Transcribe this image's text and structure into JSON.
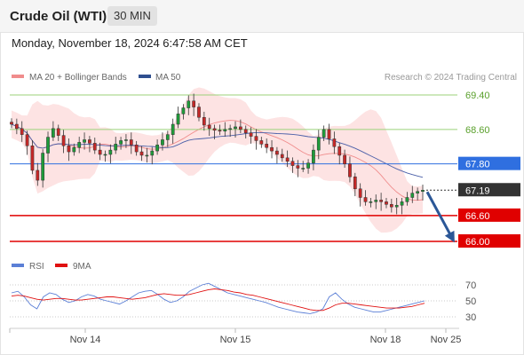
{
  "header": {
    "instrument": "Crude Oil (WTI)",
    "timeframe": "30 MIN"
  },
  "timestamp": "Monday, November 18, 2024 6:47:58 AM CET",
  "chart_data": {
    "type": "candlestick",
    "title": "Crude Oil (WTI)",
    "timeframe": "30 MIN",
    "attribution": "Research © 2024 Trading Central",
    "legend": [
      {
        "label": "MA 20 + Bollinger Bands",
        "color": "#f08c8c"
      },
      {
        "label": "MA 50",
        "color": "#2f4f8f"
      }
    ],
    "price_axis": {
      "visible_range": [
        65.9,
        69.65
      ],
      "labels": [
        "69.40",
        "68.60",
        "67.80",
        "67.19",
        "66.60",
        "66.00"
      ]
    },
    "levels": [
      {
        "label": "69.40",
        "value": 69.4,
        "type": "resistance",
        "color": "#9bd27a"
      },
      {
        "label": "68.60",
        "value": 68.6,
        "type": "resistance",
        "color": "#9bd27a"
      },
      {
        "label": "67.80",
        "value": 67.8,
        "type": "pivot",
        "color": "#2f6fe0"
      },
      {
        "label": "67.19",
        "value": 67.19,
        "type": "last_price",
        "color": "#333333"
      },
      {
        "label": "66.60",
        "value": 66.6,
        "type": "support",
        "color": "#e00000"
      },
      {
        "label": "66.00",
        "value": 66.0,
        "type": "support",
        "color": "#e00000"
      }
    ],
    "forecast_arrow": {
      "from": 67.19,
      "to": 66.0,
      "color": "#2b5797"
    },
    "x_axis": {
      "tick_labels": [
        "Nov 14",
        "Nov 15",
        "Nov 18",
        "Nov 25"
      ]
    },
    "price_series_approx": [
      68.72,
      68.62,
      68.48,
      68.22,
      67.65,
      67.42,
      68.05,
      68.42,
      68.62,
      68.46,
      68.22,
      68.08,
      68.18,
      68.3,
      68.36,
      68.28,
      68.12,
      68.02,
      68.02,
      68.12,
      68.26,
      68.34,
      68.36,
      68.24,
      68.08,
      68.0,
      68.0,
      68.1,
      68.24,
      68.36,
      68.48,
      68.72,
      68.96,
      69.1,
      69.26,
      69.12,
      68.88,
      68.7,
      68.62,
      68.58,
      68.56,
      68.6,
      68.62,
      68.66,
      68.6,
      68.52,
      68.44,
      68.34,
      68.26,
      68.18,
      68.1,
      68.02,
      67.94,
      67.86,
      67.76,
      67.7,
      67.7,
      67.82,
      68.12,
      68.42,
      68.6,
      68.38,
      68.2,
      68.0,
      67.8,
      67.5,
      67.22,
      67.02,
      66.92,
      66.92,
      66.96,
      66.92,
      66.86,
      66.8,
      66.84,
      66.92,
      67.02,
      67.12,
      67.16,
      67.19
    ],
    "rsi": {
      "label": "RSI",
      "color": "#5b7fd6",
      "axis_labels": [
        "70",
        "50",
        "30"
      ],
      "levels": [
        70,
        50,
        30
      ],
      "series_approx": [
        60,
        62,
        55,
        45,
        40,
        55,
        60,
        58,
        52,
        48,
        50,
        55,
        58,
        56,
        52,
        50,
        48,
        46,
        50,
        55,
        60,
        62,
        63,
        58,
        52,
        48,
        50,
        55,
        62,
        66,
        70,
        72,
        68,
        64,
        60,
        58,
        56,
        54,
        52,
        50,
        48,
        45,
        42,
        40,
        38,
        36,
        35,
        34,
        36,
        40,
        55,
        60,
        52,
        46,
        42,
        40,
        38,
        36,
        36,
        38,
        40,
        42,
        44,
        46,
        48,
        50
      ]
    },
    "rsi_ma": {
      "label": "9MA",
      "color": "#e01010",
      "series_approx": [
        56,
        57,
        56,
        54,
        52,
        51,
        52,
        53,
        53,
        52,
        51,
        51,
        52,
        53,
        54,
        55,
        55,
        54,
        53,
        52,
        53,
        54,
        56,
        58,
        59,
        58,
        57,
        57,
        58,
        60,
        62,
        64,
        65,
        64,
        63,
        61,
        60,
        58,
        57,
        55,
        53,
        51,
        49,
        47,
        45,
        43,
        41,
        39,
        38,
        38,
        41,
        45,
        47,
        47,
        46,
        45,
        44,
        43,
        42,
        41,
        41,
        41,
        42,
        43,
        45,
        47
      ]
    }
  }
}
